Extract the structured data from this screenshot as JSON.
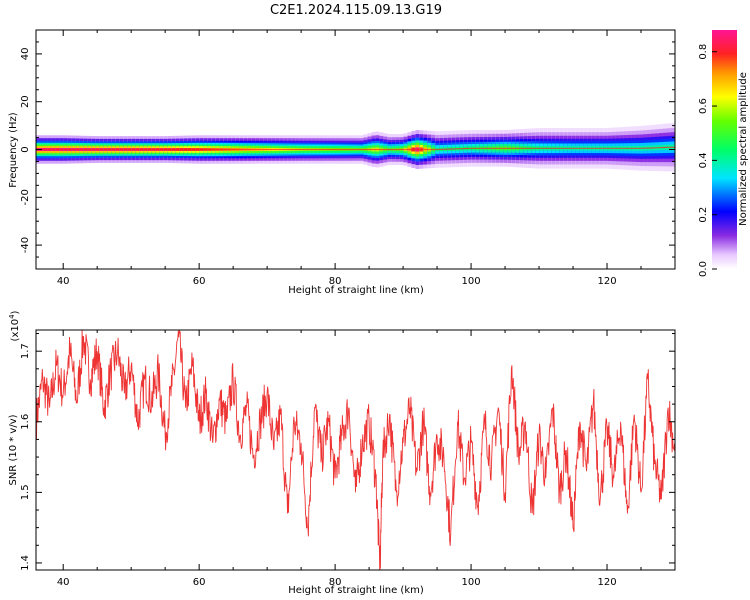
{
  "figure": {
    "title": "C2E1.2024.115.09.13.G19"
  },
  "chart_data": [
    {
      "type": "heatmap",
      "title": "C2E1.2024.115.09.13.G19",
      "xlabel": "Height of straight line (km)",
      "ylabel": "Frequency (Hz)",
      "xlim": [
        36,
        130
      ],
      "ylim": [
        -50,
        50
      ],
      "x_ticks": [
        40,
        60,
        80,
        100,
        120
      ],
      "y_ticks": [
        -40,
        -20,
        0,
        20,
        40
      ],
      "x_tick_labels": [
        "40",
        "60",
        "80",
        "100",
        "120"
      ],
      "y_tick_labels": [
        "-40",
        "-20",
        "0",
        "20",
        "40"
      ],
      "colorbar": {
        "label": "Normalized spectral amplitude",
        "range": [
          0,
          0.88
        ],
        "ticks": [
          0.0,
          0.2,
          0.4,
          0.6,
          0.8
        ],
        "tick_labels": [
          "0.0",
          "0.2",
          "0.4",
          "0.6",
          "0.8"
        ]
      },
      "band_profile": {
        "height_km": [
          36,
          40,
          45,
          50,
          55,
          60,
          65,
          70,
          75,
          80,
          84,
          86,
          88,
          90,
          92,
          95,
          100,
          105,
          110,
          115,
          120,
          125,
          130
        ],
        "peak_amplitude": [
          0.86,
          0.86,
          0.85,
          0.84,
          0.82,
          0.78,
          0.72,
          0.65,
          0.58,
          0.55,
          0.52,
          0.62,
          0.5,
          0.55,
          0.88,
          0.42,
          0.44,
          0.52,
          0.42,
          0.4,
          0.4,
          0.4,
          0.4
        ],
        "half_width_hz": [
          3.5,
          3.5,
          3.3,
          3.3,
          3.3,
          3.5,
          3.5,
          3.5,
          3.5,
          3.5,
          3.5,
          4.5,
          3.8,
          3.8,
          4.8,
          4.5,
          4.5,
          4.5,
          5,
          5,
          5,
          5.5,
          6
        ],
        "center_hz": [
          0,
          0,
          0,
          0,
          0,
          0,
          0,
          0,
          0,
          0,
          0,
          0,
          0,
          0,
          0,
          0,
          0.5,
          0.5,
          0.5,
          0.5,
          0.5,
          0.5,
          1
        ]
      }
    },
    {
      "type": "line",
      "xlabel": "Height of straight line (km)",
      "ylabel": "SNR (10 * v/v)",
      "y_multiplier_label": "(x10",
      "y_multiplier_exponent": "4",
      "xlim": [
        36,
        130
      ],
      "ylim": [
        1.39,
        1.73
      ],
      "x_ticks": [
        40,
        60,
        80,
        100,
        120
      ],
      "y_ticks": [
        1.4,
        1.5,
        1.6,
        1.7
      ],
      "x_tick_labels": [
        "40",
        "60",
        "80",
        "100",
        "120"
      ],
      "y_tick_labels": [
        "1.4",
        "1.5",
        "1.6",
        "1.7"
      ],
      "series": [
        {
          "color": "#ee3333",
          "x": [
            36,
            37,
            38,
            39,
            40,
            41,
            42,
            43,
            44,
            45,
            46,
            47,
            48,
            49,
            50,
            51,
            52,
            53,
            54,
            55,
            56,
            57,
            58,
            59,
            60,
            61,
            62,
            63,
            64,
            65,
            66,
            67,
            68,
            69,
            70,
            71,
            72,
            73,
            74,
            75,
            76,
            77,
            78,
            79,
            80,
            81,
            82,
            83,
            84,
            85,
            86,
            86.6,
            87,
            88,
            89,
            90,
            91,
            92,
            93,
            94,
            95,
            96,
            97,
            98,
            99,
            100,
            101,
            102,
            103,
            104,
            105,
            106,
            107,
            108,
            109,
            110,
            111,
            112,
            113,
            114,
            115,
            116,
            117,
            118,
            119,
            120,
            121,
            122,
            123,
            124,
            125,
            126,
            127,
            128,
            129,
            130
          ],
          "y": [
            1.6,
            1.66,
            1.62,
            1.68,
            1.64,
            1.7,
            1.63,
            1.72,
            1.66,
            1.7,
            1.62,
            1.67,
            1.7,
            1.64,
            1.68,
            1.6,
            1.66,
            1.63,
            1.67,
            1.58,
            1.65,
            1.72,
            1.62,
            1.68,
            1.6,
            1.64,
            1.57,
            1.63,
            1.6,
            1.66,
            1.58,
            1.62,
            1.55,
            1.6,
            1.64,
            1.56,
            1.61,
            1.47,
            1.6,
            1.57,
            1.45,
            1.62,
            1.55,
            1.6,
            1.52,
            1.58,
            1.62,
            1.5,
            1.57,
            1.6,
            1.52,
            1.39,
            1.55,
            1.61,
            1.5,
            1.57,
            1.62,
            1.53,
            1.6,
            1.5,
            1.58,
            1.55,
            1.44,
            1.6,
            1.52,
            1.57,
            1.48,
            1.6,
            1.54,
            1.62,
            1.5,
            1.68,
            1.55,
            1.6,
            1.47,
            1.58,
            1.52,
            1.62,
            1.5,
            1.56,
            1.45,
            1.6,
            1.53,
            1.63,
            1.49,
            1.59,
            1.52,
            1.6,
            1.47,
            1.61,
            1.5,
            1.66,
            1.54,
            1.49,
            1.62,
            1.56
          ]
        }
      ]
    }
  ]
}
